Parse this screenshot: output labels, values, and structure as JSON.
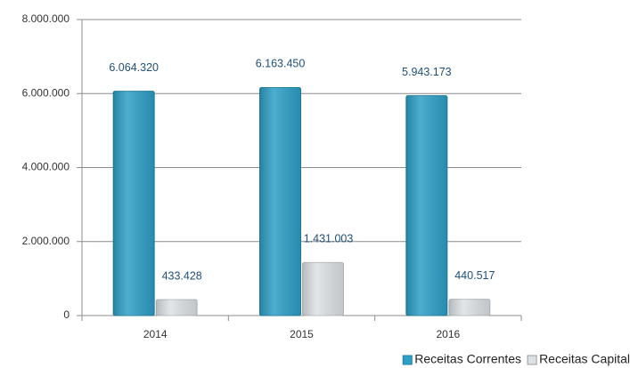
{
  "chart_data": {
    "type": "bar",
    "categories": [
      "2014",
      "2015",
      "2016"
    ],
    "series": [
      {
        "name": "Receitas Correntes",
        "color": "#2e9fc6",
        "values": [
          6064320,
          6163450,
          5943173
        ],
        "value_labels": [
          "6.064.320",
          "6.163.450",
          "5.943.173"
        ]
      },
      {
        "name": "Receitas Capital",
        "color": "#dde1e4",
        "values": [
          433428,
          1431003,
          440517
        ],
        "value_labels": [
          "433.428",
          "1.431.003",
          "440.517"
        ]
      }
    ],
    "ylim": [
      0,
      8000000
    ],
    "yticks": [
      0,
      {
        "value": 2000000,
        "label": "2.000.000"
      },
      {
        "value": 4000000,
        "label": "4.000.000"
      },
      {
        "value": 6000000,
        "label": "6.000.000"
      },
      {
        "value": 8000000,
        "label": "8.000.000"
      }
    ],
    "grid": true,
    "legend": "bottom-right"
  }
}
